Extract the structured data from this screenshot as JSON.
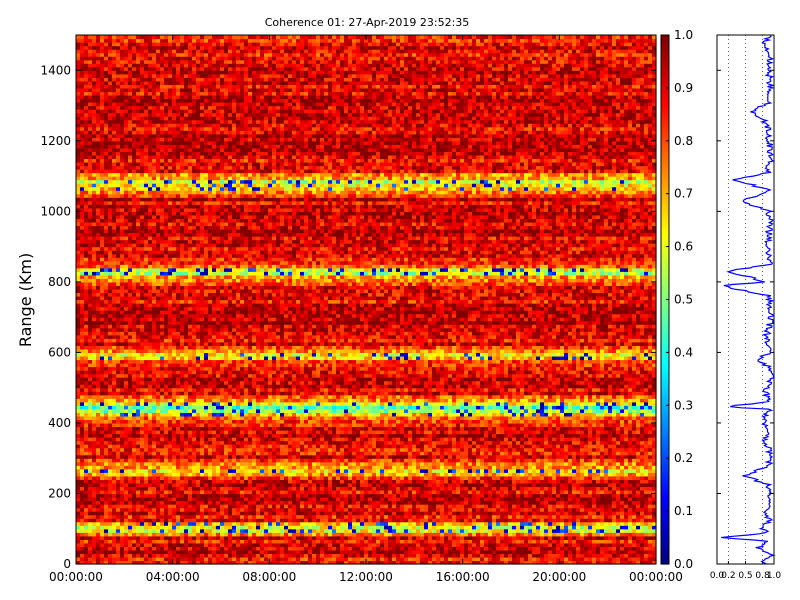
{
  "chart_data": [
    {
      "type": "heatmap",
      "title": "Coherence 01: 27-Apr-2019 23:52:35",
      "ylabel": "Range (Km)",
      "xlabel": "",
      "xlim": [
        "00:00:00",
        "24:00:00"
      ],
      "ylim": [
        0,
        1500
      ],
      "xticks": [
        "00:00:00",
        "04:00:00",
        "08:00:00",
        "12:00:00",
        "16:00:00",
        "20:00:00",
        "00:00:00"
      ],
      "yticks": [
        0,
        200,
        400,
        600,
        800,
        1000,
        1200,
        1400
      ],
      "colormap": "jet",
      "colorbar": {
        "range": [
          0.0,
          1.0
        ],
        "ticks": [
          "0.0",
          "0.1",
          "0.2",
          "0.3",
          "0.4",
          "0.5",
          "0.6",
          "0.7",
          "0.8",
          "0.9",
          "1.0"
        ]
      },
      "range_profile_mean": [
        [
          0,
          0.85
        ],
        [
          40,
          0.9
        ],
        [
          75,
          0.88
        ],
        [
          100,
          0.5
        ],
        [
          125,
          0.85
        ],
        [
          150,
          0.92
        ],
        [
          200,
          0.9
        ],
        [
          240,
          0.93
        ],
        [
          265,
          0.6
        ],
        [
          300,
          0.88
        ],
        [
          350,
          0.9
        ],
        [
          400,
          0.88
        ],
        [
          445,
          0.45
        ],
        [
          480,
          0.9
        ],
        [
          520,
          0.93
        ],
        [
          560,
          0.88
        ],
        [
          590,
          0.65
        ],
        [
          620,
          0.9
        ],
        [
          680,
          0.94
        ],
        [
          720,
          0.92
        ],
        [
          760,
          0.9
        ],
        [
          790,
          0.88
        ],
        [
          830,
          0.55
        ],
        [
          860,
          0.9
        ],
        [
          900,
          0.88
        ],
        [
          950,
          0.92
        ],
        [
          1000,
          0.9
        ],
        [
          1040,
          0.92
        ],
        [
          1080,
          0.55
        ],
        [
          1120,
          0.9
        ],
        [
          1160,
          0.92
        ],
        [
          1200,
          0.9
        ],
        [
          1240,
          0.93
        ],
        [
          1280,
          0.9
        ],
        [
          1320,
          0.92
        ],
        [
          1360,
          0.9
        ],
        [
          1400,
          0.93
        ],
        [
          1440,
          0.9
        ],
        [
          1480,
          0.85
        ],
        [
          1500,
          0.8
        ]
      ]
    },
    {
      "type": "line",
      "title": "",
      "ylim": [
        0,
        1500
      ],
      "xlim": [
        0.0,
        1.0
      ],
      "xticks": [
        "0.0",
        "0.2",
        "0.5",
        "0.8",
        "1.0"
      ],
      "yticks": [
        0,
        200,
        400,
        600,
        800,
        1000,
        1200,
        1400
      ],
      "series_color": "#0000ff",
      "profile": [
        [
          0,
          0.9
        ],
        [
          10,
          0.8
        ],
        [
          25,
          0.95
        ],
        [
          45,
          0.7
        ],
        [
          65,
          0.92
        ],
        [
          75,
          0.1
        ],
        [
          90,
          0.95
        ],
        [
          100,
          0.75
        ],
        [
          120,
          0.93
        ],
        [
          150,
          0.85
        ],
        [
          175,
          0.95
        ],
        [
          200,
          0.92
        ],
        [
          225,
          0.88
        ],
        [
          250,
          0.5
        ],
        [
          265,
          0.7
        ],
        [
          275,
          0.88
        ],
        [
          300,
          0.95
        ],
        [
          330,
          0.9
        ],
        [
          345,
          0.85
        ],
        [
          380,
          0.9
        ],
        [
          400,
          0.8
        ],
        [
          440,
          0.92
        ],
        [
          445,
          0.1
        ],
        [
          460,
          0.9
        ],
        [
          490,
          0.85
        ],
        [
          520,
          0.95
        ],
        [
          560,
          0.9
        ],
        [
          580,
          0.7
        ],
        [
          600,
          0.93
        ],
        [
          650,
          0.88
        ],
        [
          700,
          0.95
        ],
        [
          760,
          0.92
        ],
        [
          790,
          0.05
        ],
        [
          800,
          0.85
        ],
        [
          830,
          0.2
        ],
        [
          850,
          0.92
        ],
        [
          900,
          0.88
        ],
        [
          960,
          0.93
        ],
        [
          1000,
          0.9
        ],
        [
          1030,
          0.45
        ],
        [
          1060,
          0.92
        ],
        [
          1090,
          0.3
        ],
        [
          1110,
          0.9
        ],
        [
          1160,
          0.95
        ],
        [
          1200,
          0.92
        ],
        [
          1250,
          0.88
        ],
        [
          1280,
          0.6
        ],
        [
          1310,
          0.92
        ],
        [
          1350,
          0.95
        ],
        [
          1400,
          0.9
        ],
        [
          1440,
          0.93
        ],
        [
          1480,
          0.85
        ],
        [
          1500,
          0.9
        ]
      ]
    }
  ]
}
